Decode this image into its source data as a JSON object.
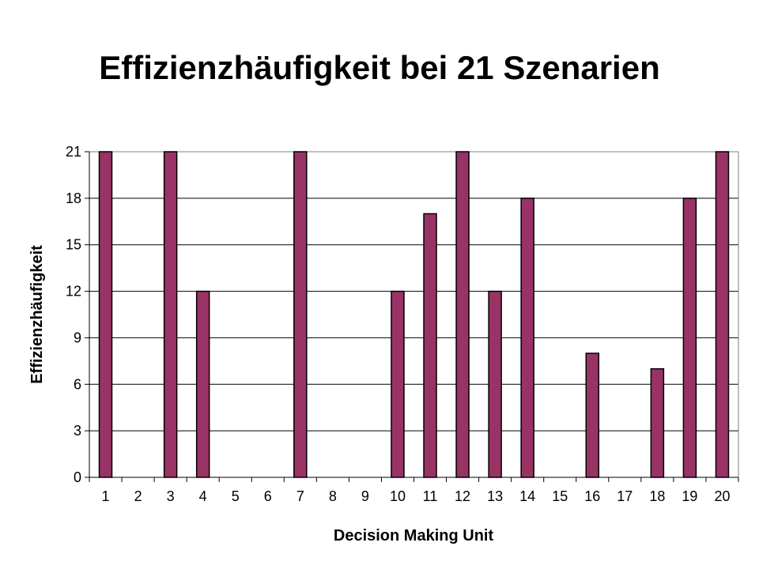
{
  "chart_data": {
    "type": "bar",
    "title": "Effizienzhäufigkeit bei 21 Szenarien",
    "xlabel": "Decision Making Unit",
    "ylabel": "Effizienzhäufigkeit",
    "categories": [
      "1",
      "2",
      "3",
      "4",
      "5",
      "6",
      "7",
      "8",
      "9",
      "10",
      "11",
      "12",
      "13",
      "14",
      "15",
      "16",
      "17",
      "18",
      "19",
      "20"
    ],
    "values": [
      21,
      0,
      21,
      12,
      0,
      0,
      21,
      0,
      0,
      12,
      17,
      21,
      12,
      18,
      0,
      8,
      0,
      7,
      18,
      21
    ],
    "ylim": [
      0,
      21
    ],
    "yticks": [
      0,
      3,
      6,
      9,
      12,
      15,
      18,
      21
    ],
    "grid": true,
    "legend": "none",
    "bar_color": "#993366"
  }
}
